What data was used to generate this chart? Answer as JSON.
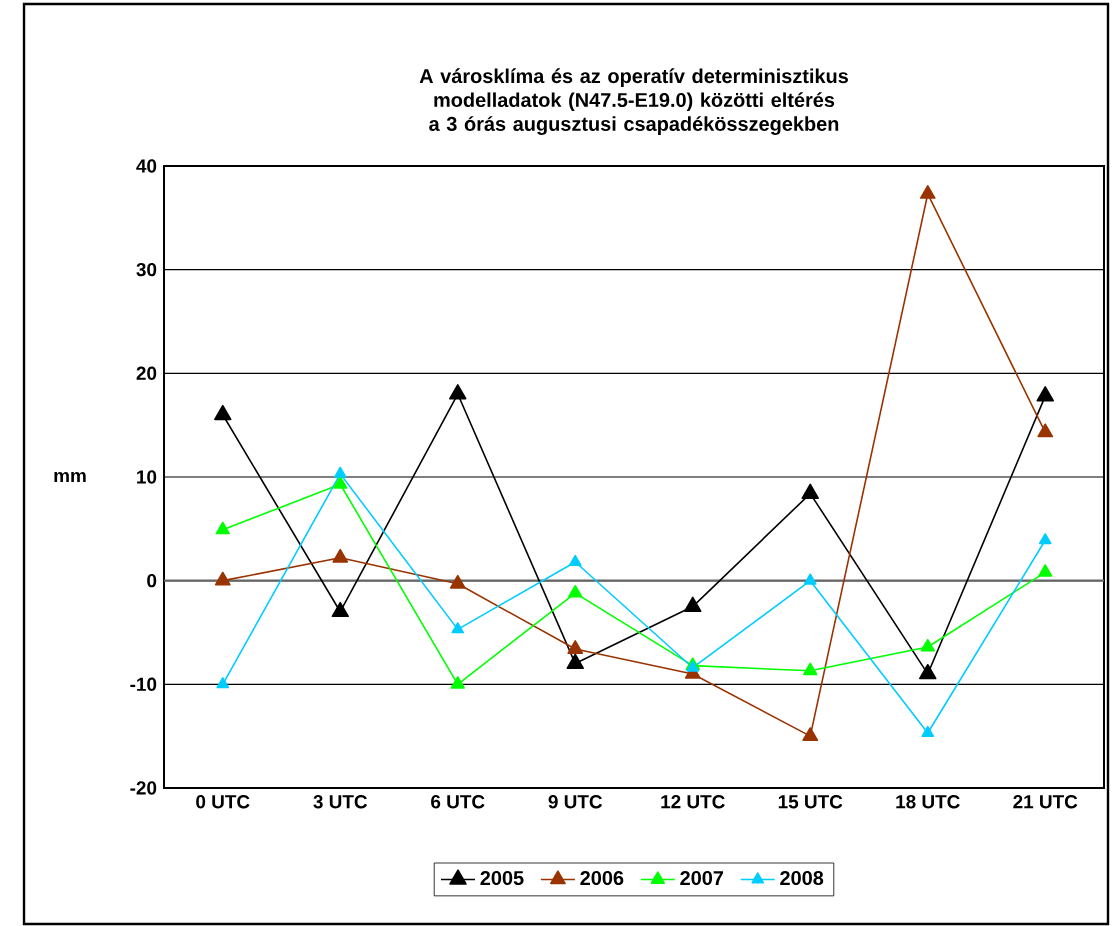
{
  "chart_data": {
    "type": "line",
    "title": "A városklíma és az operatív determinisztikus modelladatok (N47.5-E19.0) közötti eltérés a 3 órás augusztusi csapadékösszegekben",
    "ylabel": "mm",
    "categories": [
      "0 UTC",
      "3 UTC",
      "6 UTC",
      "9 UTC",
      "12 UTC",
      "15 UTC",
      "18 UTC",
      "21 UTC"
    ],
    "series": [
      {
        "name": "2005",
        "color": "#000000",
        "values": [
          16,
          -3,
          18,
          -8,
          -2.5,
          8.4,
          -9,
          17.8
        ]
      },
      {
        "name": "2006",
        "color": "#993300",
        "values": [
          0,
          2.2,
          -0.3,
          -6.6,
          -9,
          -15,
          37.3,
          14.3
        ]
      },
      {
        "name": "2007",
        "color": "#00ff00",
        "values": [
          4.9,
          9.3,
          -10,
          -1.2,
          -8.2,
          -8.7,
          -6.4,
          0.8
        ]
      },
      {
        "name": "2008",
        "color": "#00ccff",
        "values": [
          -10,
          10.3,
          -4.7,
          1.8,
          -8.4,
          0,
          -14.7,
          3.9
        ]
      }
    ],
    "ylim": [
      -20,
      40
    ],
    "yticks": [
      -20,
      -10,
      0,
      10,
      20,
      30,
      40
    ],
    "grid": "y",
    "legend": "bottom",
    "marker": "triangle",
    "line_style": "solid"
  }
}
